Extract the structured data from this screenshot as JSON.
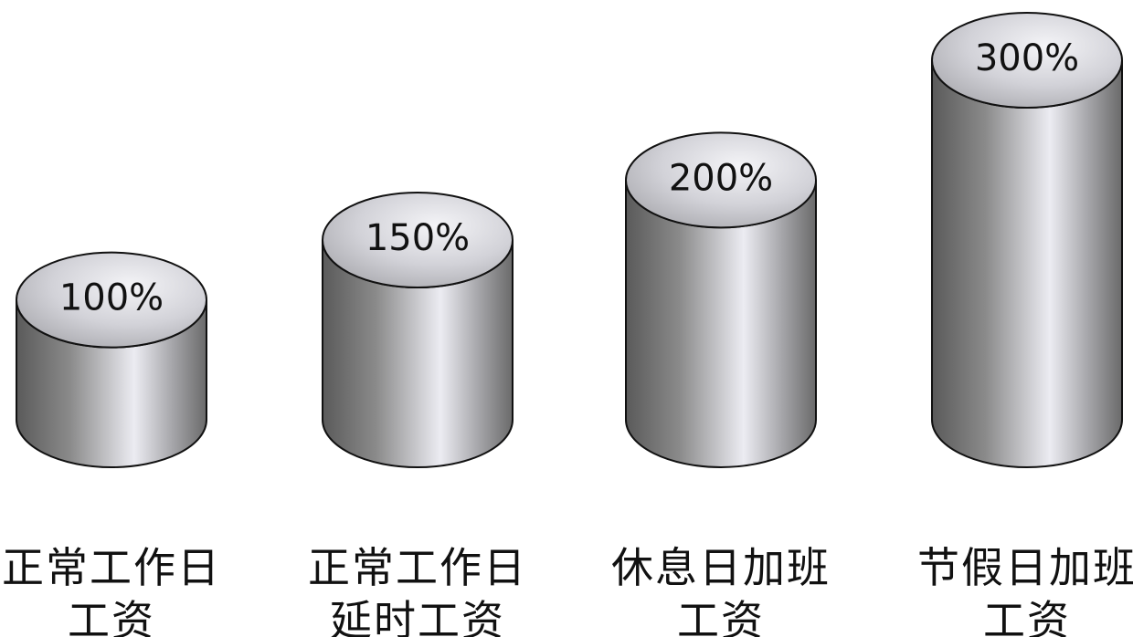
{
  "chart_data": {
    "type": "bar",
    "categories": [
      [
        "正常工作日",
        "工资"
      ],
      [
        "正常工作日",
        "延时工资"
      ],
      [
        "休息日加班",
        "工资"
      ],
      [
        "节假日加班",
        "工资"
      ]
    ],
    "values": [
      100,
      150,
      200,
      300
    ],
    "value_labels": [
      "100%",
      "150%",
      "200%",
      "300%"
    ],
    "title": "",
    "xlabel": "",
    "ylabel": "",
    "unit": "%",
    "grid": false,
    "legend": "none",
    "style": "3d-cylinder",
    "colors": {
      "body_dark": "#5a5a5a",
      "body_mid": "#8a8a8a",
      "body_light": "#ececf2",
      "top_light": "#f4f4f7",
      "top_dark": "#a9a9ae",
      "outline": "#111111"
    }
  }
}
